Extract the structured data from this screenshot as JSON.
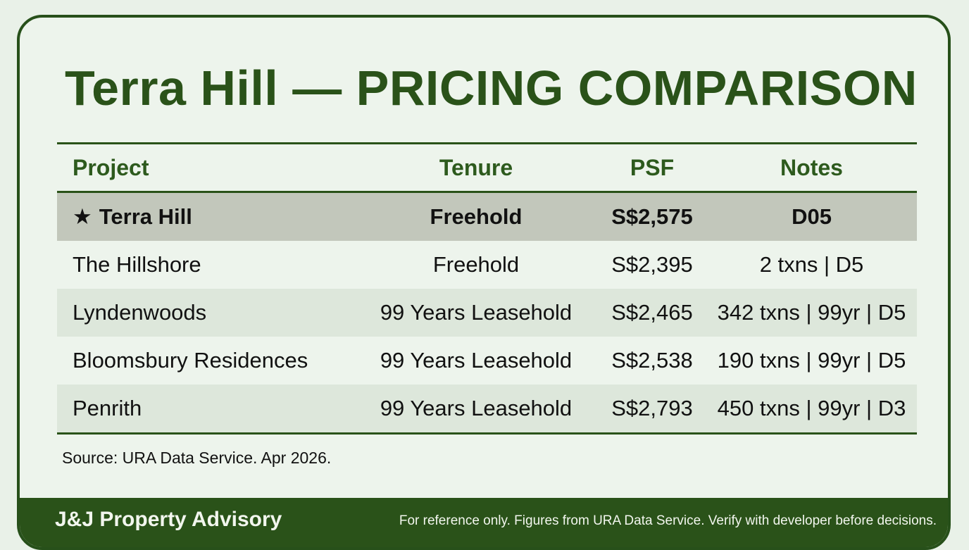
{
  "title": "Terra Hill — PRICING COMPARISON",
  "table": {
    "headers": [
      "Project",
      "Tenure",
      "PSF",
      "Notes"
    ],
    "rows": [
      {
        "project": "Terra Hill",
        "tenure": "Freehold",
        "psf": "S$2,575",
        "notes": "D05",
        "highlight": true,
        "icon": "star-icon"
      },
      {
        "project": "The Hillshore",
        "tenure": "Freehold",
        "psf": "S$2,395",
        "notes": "2 txns | D5"
      },
      {
        "project": "Lyndenwoods",
        "tenure": "99 Years Leasehold",
        "psf": "S$2,465",
        "notes": "342 txns | 99yr | D5"
      },
      {
        "project": "Bloomsbury Residences",
        "tenure": "99 Years Leasehold",
        "psf": "S$2,538",
        "notes": "190 txns | 99yr | D5"
      },
      {
        "project": "Penrith",
        "tenure": "99 Years Leasehold",
        "psf": "S$2,793",
        "notes": "450 txns | 99yr | D3"
      }
    ]
  },
  "source": "Source: URA Data Service. Apr 2026.",
  "footer": {
    "brand": "J&J Property Advisory",
    "disclaimer": "For reference only. Figures from URA Data Service. Verify with developer before decisions."
  },
  "colors": {
    "accent": "#2a5219",
    "background": "#e9f1e8",
    "highlight_row": "#c2c7bb",
    "alt_row": "#dde7db"
  }
}
